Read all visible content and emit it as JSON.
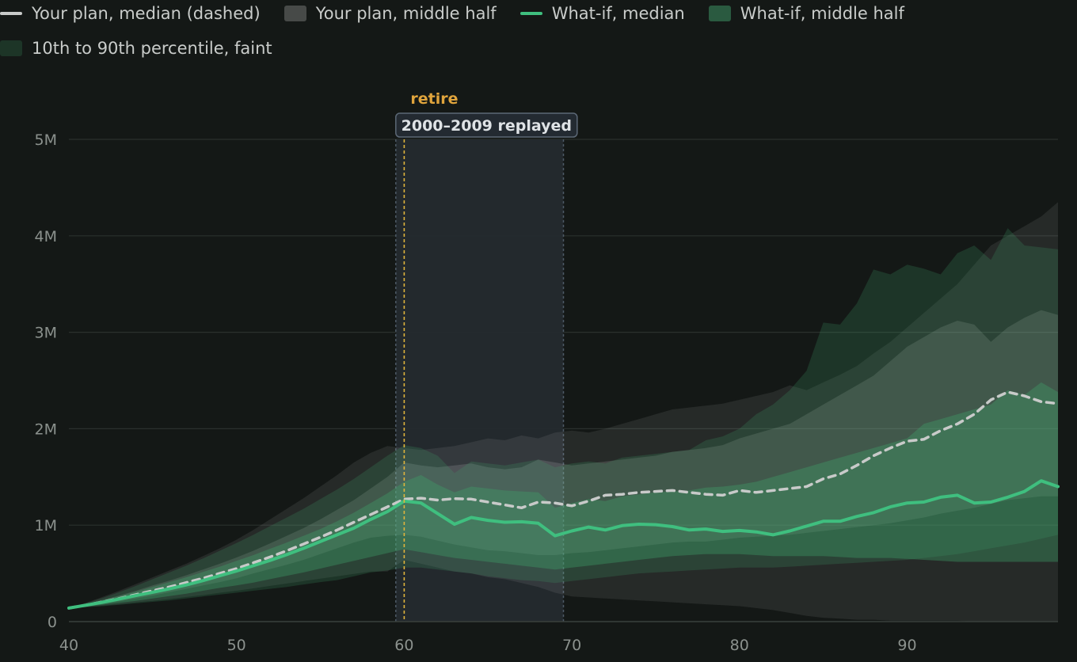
{
  "legend": {
    "items": [
      {
        "label": "Your plan, median (dashed)",
        "kind": "line",
        "color": "#c8cac9"
      },
      {
        "label": "Your plan, middle half",
        "kind": "box",
        "color": "#474a48"
      },
      {
        "label": "What-if, median",
        "kind": "line",
        "color": "#3fbf7f"
      },
      {
        "label": "What-if, middle half",
        "kind": "box",
        "color": "#2a5a40"
      },
      {
        "label": "10th to 90th percentile, faint",
        "kind": "box",
        "color": "#1d3527"
      }
    ]
  },
  "annotations": {
    "retire_label": "retire",
    "retire_age": 60,
    "window_label": "2000–2009 replayed",
    "window_start": 59.5,
    "window_end": 69.5
  },
  "colors": {
    "background": "#141816",
    "plan_band": "#ffffff",
    "whatif_band": "#3fa06a",
    "whatif_line": "#3fbf7f",
    "plan_line": "#c8cac9",
    "retire": "#e0b43c",
    "window_fill": "#242a2e",
    "window_edge": "#4d5a66"
  },
  "chart_data": {
    "type": "area",
    "xlabel": "",
    "ylabel": "",
    "xlim": [
      40,
      99
    ],
    "ylim": [
      0,
      5000000
    ],
    "xticks": [
      40,
      50,
      60,
      70,
      80,
      90
    ],
    "yticks": [
      0,
      1000000,
      2000000,
      3000000,
      4000000,
      5000000
    ],
    "ytick_labels": [
      "0",
      "1M",
      "2M",
      "3M",
      "4M",
      "5M"
    ],
    "grid": true,
    "x": [
      40,
      41,
      42,
      43,
      44,
      45,
      46,
      47,
      48,
      49,
      50,
      51,
      52,
      53,
      54,
      55,
      56,
      57,
      58,
      59,
      60,
      61,
      62,
      63,
      64,
      65,
      66,
      67,
      68,
      69,
      70,
      71,
      72,
      73,
      74,
      75,
      76,
      77,
      78,
      79,
      80,
      81,
      82,
      83,
      84,
      85,
      86,
      87,
      88,
      89,
      90,
      91,
      92,
      93,
      94,
      95,
      96,
      97,
      98,
      99
    ],
    "series": [
      {
        "name": "Your plan, median (dashed)",
        "values": [
          140000,
          170000,
          205000,
          240000,
          280000,
          320000,
          360000,
          405000,
          450000,
          500000,
          550000,
          610000,
          670000,
          735000,
          805000,
          875000,
          950000,
          1030000,
          1110000,
          1190000,
          1270000,
          1280000,
          1260000,
          1275000,
          1270000,
          1240000,
          1210000,
          1180000,
          1240000,
          1230000,
          1200000,
          1250000,
          1310000,
          1320000,
          1340000,
          1350000,
          1360000,
          1340000,
          1320000,
          1310000,
          1360000,
          1340000,
          1360000,
          1380000,
          1400000,
          1480000,
          1530000,
          1620000,
          1720000,
          1800000,
          1870000,
          1890000,
          1980000,
          2050000,
          2150000,
          2300000,
          2380000,
          2340000,
          2280000,
          2260000
        ]
      },
      {
        "name": "Your plan, 25th percentile",
        "values": [
          140000,
          160000,
          185000,
          210000,
          240000,
          270000,
          305000,
          340000,
          375000,
          410000,
          450000,
          500000,
          545000,
          590000,
          640000,
          700000,
          760000,
          820000,
          870000,
          890000,
          900000,
          880000,
          840000,
          800000,
          770000,
          740000,
          730000,
          710000,
          690000,
          690000,
          710000,
          720000,
          740000,
          760000,
          780000,
          800000,
          820000,
          830000,
          830000,
          850000,
          870000,
          880000,
          890000,
          900000,
          920000,
          940000,
          960000,
          980000,
          1000000,
          1020000,
          1050000,
          1080000,
          1120000,
          1150000,
          1180000,
          1220000,
          1260000,
          1280000,
          1300000,
          1300000
        ]
      },
      {
        "name": "Your plan, 75th percentile",
        "values": [
          140000,
          180000,
          225000,
          270000,
          320000,
          375000,
          425000,
          480000,
          540000,
          600000,
          665000,
          735000,
          810000,
          890000,
          970000,
          1060000,
          1160000,
          1260000,
          1380000,
          1500000,
          1650000,
          1620000,
          1600000,
          1620000,
          1640000,
          1600000,
          1580000,
          1600000,
          1680000,
          1650000,
          1620000,
          1640000,
          1660000,
          1680000,
          1700000,
          1720000,
          1760000,
          1780000,
          1800000,
          1830000,
          1900000,
          1950000,
          2000000,
          2050000,
          2150000,
          2250000,
          2350000,
          2450000,
          2550000,
          2700000,
          2850000,
          2950000,
          3050000,
          3120000,
          3080000,
          2900000,
          3050000,
          3150000,
          3230000,
          3180000
        ]
      },
      {
        "name": "Your plan, 10th percentile",
        "values": [
          140000,
          150000,
          165000,
          180000,
          200000,
          215000,
          235000,
          255000,
          275000,
          300000,
          320000,
          345000,
          370000,
          395000,
          420000,
          445000,
          470000,
          495000,
          520000,
          520000,
          640000,
          600000,
          560000,
          520000,
          500000,
          460000,
          440000,
          400000,
          360000,
          300000,
          260000,
          250000,
          240000,
          230000,
          220000,
          210000,
          200000,
          190000,
          180000,
          170000,
          160000,
          140000,
          120000,
          90000,
          60000,
          40000,
          30000,
          20000,
          20000,
          10000,
          10000,
          10000,
          10000,
          10000,
          0,
          0,
          0,
          0,
          0,
          0
        ]
      },
      {
        "name": "Your plan, 90th percentile",
        "values": [
          140000,
          195000,
          255000,
          320000,
          390000,
          460000,
          530000,
          600000,
          680000,
          760000,
          850000,
          950000,
          1060000,
          1170000,
          1280000,
          1400000,
          1520000,
          1650000,
          1750000,
          1820000,
          1800000,
          1780000,
          1800000,
          1820000,
          1860000,
          1900000,
          1880000,
          1930000,
          1900000,
          1960000,
          1980000,
          1960000,
          2000000,
          2050000,
          2100000,
          2150000,
          2200000,
          2220000,
          2240000,
          2260000,
          2300000,
          2340000,
          2380000,
          2450000,
          2400000,
          2480000,
          2560000,
          2650000,
          2780000,
          2900000,
          3050000,
          3200000,
          3350000,
          3500000,
          3700000,
          3900000,
          4000000,
          4100000,
          4200000,
          4350000
        ]
      },
      {
        "name": "What-if, median",
        "values": [
          140000,
          170000,
          200000,
          235000,
          270000,
          305000,
          340000,
          380000,
          425000,
          475000,
          525000,
          580000,
          635000,
          695000,
          760000,
          830000,
          900000,
          970000,
          1060000,
          1140000,
          1250000,
          1230000,
          1120000,
          1010000,
          1080000,
          1050000,
          1030000,
          1035000,
          1020000,
          890000,
          940000,
          980000,
          950000,
          995000,
          1010000,
          1005000,
          985000,
          950000,
          960000,
          935000,
          945000,
          930000,
          900000,
          940000,
          990000,
          1040000,
          1040000,
          1090000,
          1130000,
          1190000,
          1230000,
          1240000,
          1290000,
          1310000,
          1230000,
          1240000,
          1290000,
          1350000,
          1460000,
          1400000
        ]
      },
      {
        "name": "What-if, 25th percentile",
        "values": [
          140000,
          155000,
          175000,
          195000,
          215000,
          240000,
          265000,
          290000,
          320000,
          350000,
          375000,
          405000,
          440000,
          475000,
          510000,
          550000,
          590000,
          630000,
          670000,
          710000,
          750000,
          720000,
          690000,
          660000,
          640000,
          620000,
          600000,
          580000,
          560000,
          540000,
          560000,
          580000,
          600000,
          620000,
          640000,
          660000,
          680000,
          690000,
          700000,
          700000,
          700000,
          690000,
          680000,
          680000,
          680000,
          680000,
          670000,
          660000,
          660000,
          660000,
          650000,
          640000,
          630000,
          620000,
          620000,
          620000,
          620000,
          620000,
          620000,
          620000
        ]
      },
      {
        "name": "What-if, 75th percentile",
        "values": [
          140000,
          180000,
          220000,
          265000,
          310000,
          360000,
          410000,
          460000,
          515000,
          570000,
          630000,
          690000,
          755000,
          820000,
          890000,
          960000,
          1040000,
          1130000,
          1230000,
          1330000,
          1450000,
          1520000,
          1420000,
          1340000,
          1400000,
          1380000,
          1360000,
          1350000,
          1340000,
          1180000,
          1230000,
          1270000,
          1250000,
          1300000,
          1320000,
          1340000,
          1350000,
          1360000,
          1390000,
          1400000,
          1420000,
          1450000,
          1500000,
          1550000,
          1600000,
          1650000,
          1700000,
          1750000,
          1800000,
          1850000,
          1900000,
          2050000,
          2100000,
          2150000,
          2200000,
          2250000,
          2400000,
          2350000,
          2480000,
          2380000
        ]
      },
      {
        "name": "What-if, 10th percentile",
        "values": [
          140000,
          150000,
          160000,
          175000,
          190000,
          205000,
          220000,
          240000,
          260000,
          280000,
          300000,
          320000,
          340000,
          360000,
          385000,
          410000,
          430000,
          470000,
          510000,
          530000,
          560000,
          560000,
          540000,
          520000,
          500000,
          470000,
          450000,
          430000,
          420000,
          400000,
          420000,
          440000,
          460000,
          480000,
          500000,
          510000,
          520000,
          530000,
          540000,
          550000,
          560000,
          560000,
          560000,
          570000,
          580000,
          590000,
          600000,
          610000,
          620000,
          630000,
          640000,
          660000,
          680000,
          700000,
          730000,
          760000,
          790000,
          820000,
          860000,
          900000
        ]
      },
      {
        "name": "What-if, 90th percentile",
        "values": [
          140000,
          190000,
          245000,
          305000,
          370000,
          440000,
          510000,
          580000,
          655000,
          735000,
          815000,
          900000,
          990000,
          1080000,
          1170000,
          1270000,
          1370000,
          1480000,
          1600000,
          1720000,
          1830000,
          1800000,
          1720000,
          1540000,
          1660000,
          1640000,
          1620000,
          1650000,
          1680000,
          1600000,
          1640000,
          1660000,
          1640000,
          1700000,
          1720000,
          1740000,
          1760000,
          1780000,
          1880000,
          1920000,
          2000000,
          2150000,
          2250000,
          2400000,
          2600000,
          3100000,
          3080000,
          3300000,
          3650000,
          3600000,
          3700000,
          3660000,
          3600000,
          3820000,
          3900000,
          3750000,
          4080000,
          3900000,
          3880000,
          3860000
        ]
      }
    ]
  }
}
